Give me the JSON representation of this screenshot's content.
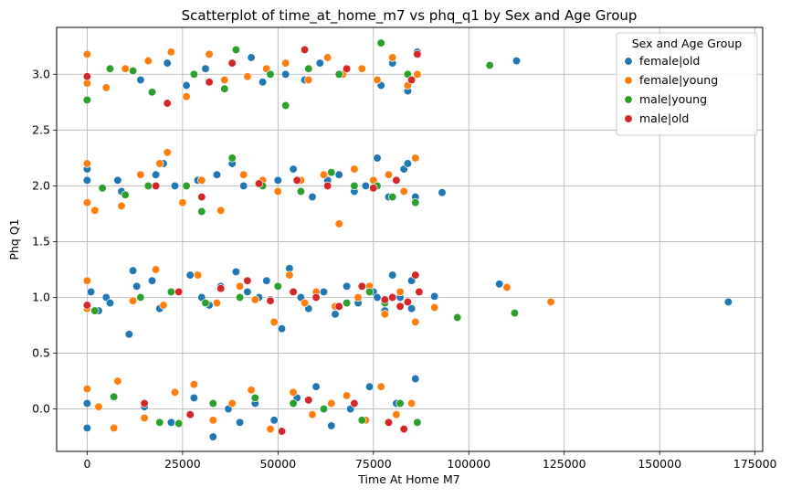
{
  "chart_data": {
    "type": "scatter",
    "title": "Scatterplot of time_at_home_m7 vs phq_q1 by Sex and Age Group",
    "xlabel": "Time At Home M7",
    "ylabel": "Phq Q1",
    "xlim": [
      -8000,
      177000
    ],
    "ylim": [
      -0.38,
      3.42
    ],
    "xticks": [
      0,
      25000,
      50000,
      75000,
      100000,
      125000,
      150000,
      175000
    ],
    "xtick_labels": [
      "0",
      "25000",
      "50000",
      "75000",
      "100000",
      "125000",
      "150000",
      "175000"
    ],
    "yticks": [
      0.0,
      0.5,
      1.0,
      1.5,
      2.0,
      2.5,
      3.0
    ],
    "ytick_labels": [
      "0.0",
      "0.5",
      "1.0",
      "1.5",
      "2.0",
      "2.5",
      "3.0"
    ],
    "grid": true,
    "legend": {
      "title": "Sex and Age Group",
      "position": "top-right",
      "entries": [
        "female|old",
        "female|young",
        "male|young",
        "male|old"
      ]
    },
    "series": [
      {
        "name": "female|old",
        "color": "#1f77b4",
        "points": [
          [
            0,
            -0.17
          ],
          [
            0,
            0.05
          ],
          [
            1000,
            1.05
          ],
          [
            0,
            2.15
          ],
          [
            0,
            2.05
          ],
          [
            3000,
            0.88
          ],
          [
            5000,
            1.0
          ],
          [
            6000,
            0.95
          ],
          [
            8000,
            2.05
          ],
          [
            9000,
            1.95
          ],
          [
            11000,
            0.67
          ],
          [
            12000,
            1.24
          ],
          [
            13000,
            1.1
          ],
          [
            14000,
            2.95
          ],
          [
            15000,
            0.02
          ],
          [
            17000,
            1.15
          ],
          [
            18000,
            2.1
          ],
          [
            19000,
            0.9
          ],
          [
            20000,
            2.2
          ],
          [
            21000,
            3.1
          ],
          [
            22000,
            -0.12
          ],
          [
            23000,
            2.0
          ],
          [
            24000,
            1.05
          ],
          [
            26000,
            2.9
          ],
          [
            27000,
            1.2
          ],
          [
            28000,
            0.1
          ],
          [
            29000,
            2.05
          ],
          [
            30000,
            1.0
          ],
          [
            31000,
            3.05
          ],
          [
            32000,
            0.93
          ],
          [
            33000,
            -0.25
          ],
          [
            34000,
            2.1
          ],
          [
            35000,
            1.1
          ],
          [
            36000,
            2.95
          ],
          [
            37000,
            0.0
          ],
          [
            38000,
            2.2
          ],
          [
            39000,
            1.23
          ],
          [
            40000,
            -0.12
          ],
          [
            41000,
            2.0
          ],
          [
            42000,
            1.05
          ],
          [
            43000,
            3.15
          ],
          [
            44000,
            0.05
          ],
          [
            45000,
            1.0
          ],
          [
            46000,
            2.93
          ],
          [
            47000,
            1.15
          ],
          [
            48000,
            0.98
          ],
          [
            49000,
            -0.1
          ],
          [
            50000,
            2.05
          ],
          [
            51000,
            0.72
          ],
          [
            52000,
            3.0
          ],
          [
            53000,
            1.26
          ],
          [
            54000,
            2.15
          ],
          [
            55000,
            0.1
          ],
          [
            56000,
            1.0
          ],
          [
            57000,
            2.95
          ],
          [
            58000,
            0.9
          ],
          [
            59000,
            1.9
          ],
          [
            60000,
            0.2
          ],
          [
            61000,
            3.1
          ],
          [
            62000,
            1.05
          ],
          [
            63000,
            2.05
          ],
          [
            64000,
            -0.15
          ],
          [
            65000,
            0.85
          ],
          [
            66000,
            2.1
          ],
          [
            67000,
            3.0
          ],
          [
            68000,
            1.1
          ],
          [
            69000,
            0.0
          ],
          [
            70000,
            1.95
          ],
          [
            71000,
            0.95
          ],
          [
            72000,
            3.05
          ],
          [
            73000,
            2.0
          ],
          [
            74000,
            0.2
          ],
          [
            75000,
            1.05
          ],
          [
            76000,
            2.25
          ],
          [
            77000,
            2.9
          ],
          [
            78000,
            0.88
          ],
          [
            79000,
            1.9
          ],
          [
            80000,
            3.1
          ],
          [
            81000,
            0.05
          ],
          [
            82000,
            1.0
          ],
          [
            83000,
            2.15
          ],
          [
            84000,
            2.85
          ],
          [
            85000,
            0.9
          ],
          [
            86000,
            1.9
          ],
          [
            86500,
            3.2
          ],
          [
            86000,
            0.27
          ],
          [
            85000,
            1.15
          ],
          [
            84000,
            2.2
          ],
          [
            80000,
            1.2
          ],
          [
            76000,
            1.0
          ],
          [
            91000,
            1.01
          ],
          [
            93000,
            1.94
          ],
          [
            108000,
            1.12
          ],
          [
            112500,
            3.12
          ],
          [
            168000,
            0.96
          ]
        ]
      },
      {
        "name": "female|young",
        "color": "#ff7f0e",
        "points": [
          [
            0,
            0.18
          ],
          [
            0,
            0.9
          ],
          [
            0,
            1.15
          ],
          [
            0,
            1.85
          ],
          [
            0,
            2.2
          ],
          [
            0,
            3.18
          ],
          [
            0,
            2.92
          ],
          [
            2000,
            1.78
          ],
          [
            3000,
            0.02
          ],
          [
            5000,
            2.88
          ],
          [
            7000,
            -0.17
          ],
          [
            8000,
            0.25
          ],
          [
            9000,
            1.82
          ],
          [
            10000,
            3.05
          ],
          [
            12000,
            0.97
          ],
          [
            14000,
            2.1
          ],
          [
            15000,
            -0.08
          ],
          [
            16000,
            3.12
          ],
          [
            18000,
            1.25
          ],
          [
            19000,
            2.2
          ],
          [
            20000,
            0.93
          ],
          [
            21000,
            2.3
          ],
          [
            22000,
            3.2
          ],
          [
            23000,
            0.15
          ],
          [
            24000,
            1.05
          ],
          [
            25000,
            1.85
          ],
          [
            26000,
            2.8
          ],
          [
            28000,
            0.22
          ],
          [
            29000,
            1.2
          ],
          [
            30000,
            2.05
          ],
          [
            32000,
            3.18
          ],
          [
            33000,
            -0.1
          ],
          [
            34000,
            0.95
          ],
          [
            35000,
            1.78
          ],
          [
            36000,
            2.95
          ],
          [
            38000,
            0.05
          ],
          [
            40000,
            1.1
          ],
          [
            41000,
            2.1
          ],
          [
            42000,
            2.98
          ],
          [
            43000,
            0.17
          ],
          [
            44000,
            0.98
          ],
          [
            46000,
            2.05
          ],
          [
            47000,
            3.05
          ],
          [
            48000,
            -0.18
          ],
          [
            49000,
            0.78
          ],
          [
            50000,
            1.95
          ],
          [
            52000,
            3.1
          ],
          [
            53000,
            1.2
          ],
          [
            54000,
            0.15
          ],
          [
            56000,
            2.05
          ],
          [
            57000,
            0.95
          ],
          [
            58000,
            2.95
          ],
          [
            59000,
            -0.05
          ],
          [
            60000,
            1.05
          ],
          [
            62000,
            2.1
          ],
          [
            63000,
            3.15
          ],
          [
            64000,
            0.05
          ],
          [
            65000,
            0.92
          ],
          [
            66000,
            1.66
          ],
          [
            67000,
            3.0
          ],
          [
            68000,
            0.12
          ],
          [
            70000,
            2.15
          ],
          [
            71000,
            1.0
          ],
          [
            72000,
            3.05
          ],
          [
            73000,
            -0.1
          ],
          [
            74000,
            1.1
          ],
          [
            75000,
            2.05
          ],
          [
            76000,
            2.95
          ],
          [
            77000,
            0.2
          ],
          [
            78000,
            0.85
          ],
          [
            79000,
            2.1
          ],
          [
            80000,
            3.15
          ],
          [
            81000,
            -0.05
          ],
          [
            82000,
            1.05
          ],
          [
            83000,
            1.95
          ],
          [
            84000,
            2.9
          ],
          [
            85000,
            0.05
          ],
          [
            86000,
            0.78
          ],
          [
            86000,
            2.25
          ],
          [
            86500,
            3.0
          ],
          [
            91000,
            0.91
          ],
          [
            110000,
            1.09
          ],
          [
            121500,
            0.96
          ]
        ]
      },
      {
        "name": "male|young",
        "color": "#2ca02c",
        "points": [
          [
            0,
            2.77
          ],
          [
            2000,
            0.88
          ],
          [
            4000,
            1.98
          ],
          [
            6000,
            3.05
          ],
          [
            7000,
            0.11
          ],
          [
            10000,
            1.92
          ],
          [
            12000,
            3.03
          ],
          [
            14000,
            1.0
          ],
          [
            16000,
            2.0
          ],
          [
            17000,
            2.84
          ],
          [
            19000,
            -0.12
          ],
          [
            22000,
            1.05
          ],
          [
            24000,
            -0.13
          ],
          [
            26000,
            2.0
          ],
          [
            28000,
            3.0
          ],
          [
            30000,
            1.77
          ],
          [
            31000,
            0.95
          ],
          [
            33000,
            0.05
          ],
          [
            36000,
            2.87
          ],
          [
            38000,
            2.25
          ],
          [
            39000,
            3.22
          ],
          [
            40000,
            1.0
          ],
          [
            44000,
            0.1
          ],
          [
            46000,
            2.0
          ],
          [
            48000,
            3.0
          ],
          [
            50000,
            1.1
          ],
          [
            52000,
            2.72
          ],
          [
            54000,
            0.05
          ],
          [
            56000,
            1.95
          ],
          [
            58000,
            3.05
          ],
          [
            60000,
            1.0
          ],
          [
            62000,
            0.0
          ],
          [
            64000,
            2.12
          ],
          [
            66000,
            3.0
          ],
          [
            68000,
            0.95
          ],
          [
            70000,
            2.0
          ],
          [
            72000,
            -0.1
          ],
          [
            74000,
            1.05
          ],
          [
            76000,
            2.0
          ],
          [
            77000,
            3.28
          ],
          [
            78000,
            0.95
          ],
          [
            80000,
            1.9
          ],
          [
            82000,
            0.05
          ],
          [
            84000,
            3.0
          ],
          [
            86000,
            1.85
          ],
          [
            86500,
            -0.12
          ],
          [
            97000,
            0.82
          ],
          [
            105500,
            3.08
          ],
          [
            112000,
            0.86
          ]
        ]
      },
      {
        "name": "male|old",
        "color": "#d62728",
        "points": [
          [
            0,
            2.98
          ],
          [
            0,
            0.93
          ],
          [
            15000,
            0.05
          ],
          [
            18000,
            2.0
          ],
          [
            21000,
            2.74
          ],
          [
            24000,
            1.05
          ],
          [
            27000,
            -0.05
          ],
          [
            30000,
            1.9
          ],
          [
            32000,
            2.93
          ],
          [
            35000,
            1.08
          ],
          [
            38000,
            3.1
          ],
          [
            42000,
            1.15
          ],
          [
            45000,
            2.02
          ],
          [
            48000,
            0.97
          ],
          [
            51000,
            -0.2
          ],
          [
            54000,
            1.05
          ],
          [
            55000,
            2.05
          ],
          [
            57000,
            3.22
          ],
          [
            58000,
            0.08
          ],
          [
            60000,
            1.0
          ],
          [
            63000,
            2.0
          ],
          [
            66000,
            0.92
          ],
          [
            68000,
            3.05
          ],
          [
            70000,
            0.05
          ],
          [
            72000,
            1.1
          ],
          [
            75000,
            1.98
          ],
          [
            78000,
            0.98
          ],
          [
            79000,
            -0.12
          ],
          [
            80000,
            1.0
          ],
          [
            81000,
            2.05
          ],
          [
            82000,
            0.92
          ],
          [
            83000,
            -0.18
          ],
          [
            84000,
            0.96
          ],
          [
            85000,
            2.95
          ],
          [
            86000,
            1.2
          ],
          [
            86500,
            3.18
          ],
          [
            87000,
            1.05
          ]
        ]
      }
    ]
  }
}
